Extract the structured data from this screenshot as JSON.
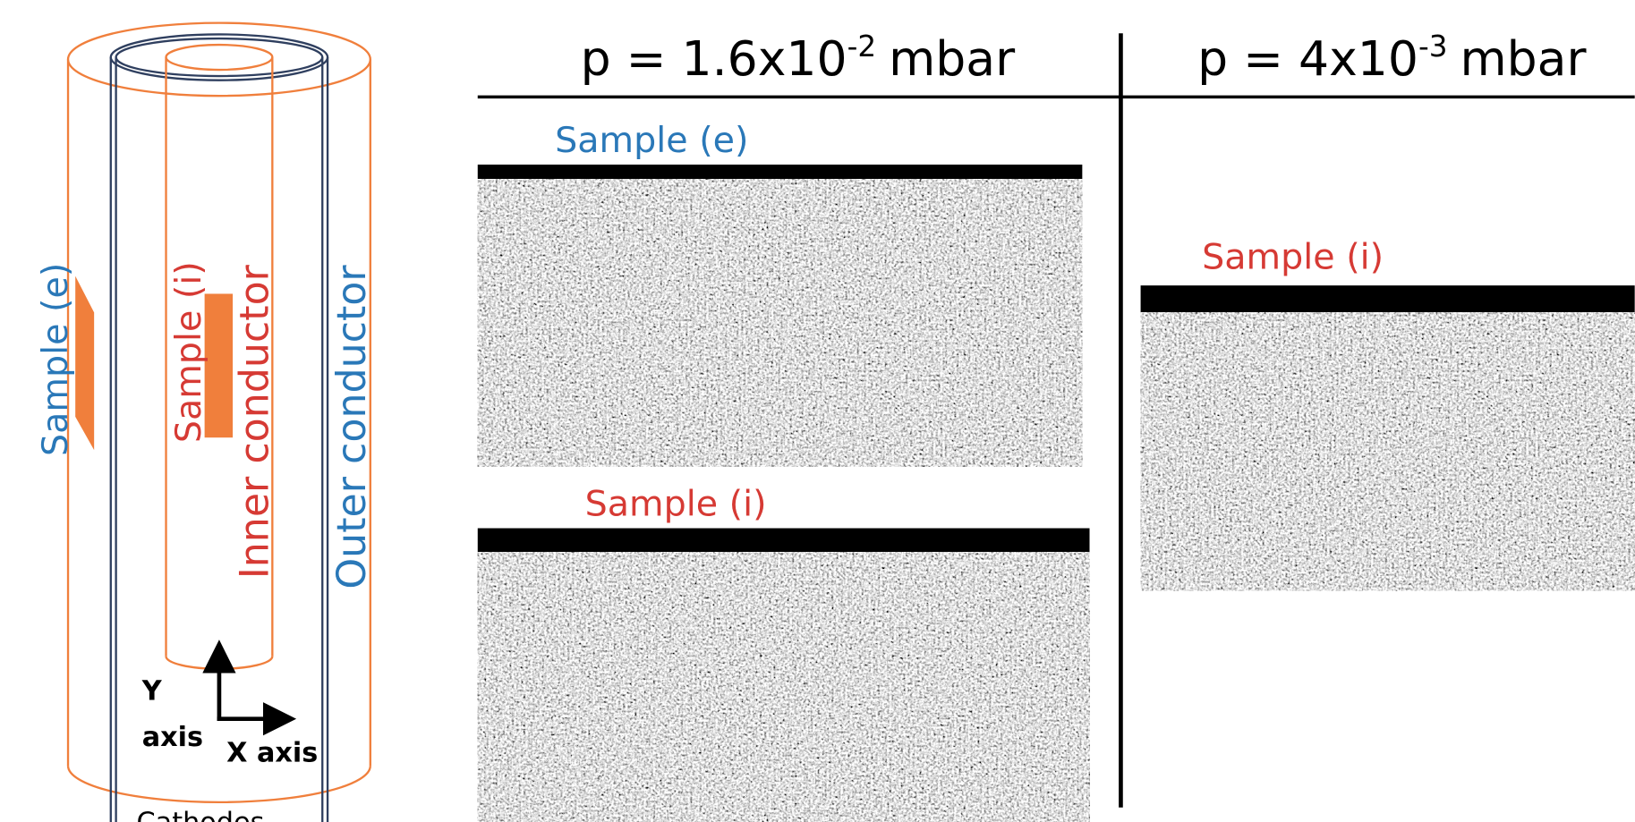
{
  "diagram": {
    "sample_e": "Sample (e)",
    "sample_i": "Sample (i)",
    "inner": "Inner conductor",
    "outer": "Outer conductor",
    "y_axis": [
      "Y",
      "axis"
    ],
    "x_axis": "X axis",
    "cathodes": "Cathodes"
  },
  "panels": {
    "headers": [
      {
        "base": "p = 1.6x10",
        "exponent": "-2",
        "unit": "mbar"
      },
      {
        "base": "p = 4x10",
        "exponent": "-3",
        "unit": "mbar"
      }
    ],
    "images": [
      {
        "label": "Sample (e)"
      },
      {
        "label": "Sample (i)"
      },
      {
        "label": "Sample (i)"
      }
    ]
  }
}
